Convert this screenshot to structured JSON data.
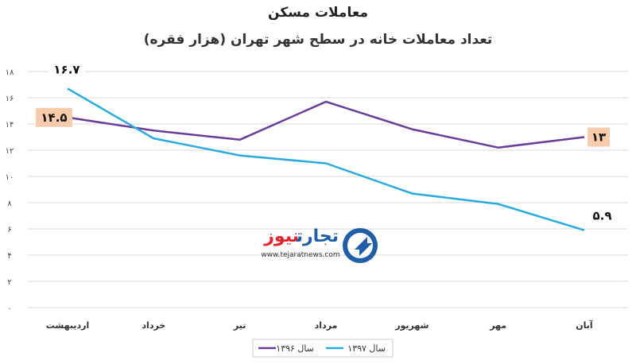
{
  "chart_data": {
    "type": "line",
    "title": "معاملات مسکن",
    "subtitle": "تعداد معاملات خانه در سطح شهر تهران (هزار فقره)",
    "categories": [
      "اردیبهشت",
      "خرداد",
      "تیر",
      "مرداد",
      "شهریور",
      "مهر",
      "آبان"
    ],
    "ylim": [
      0,
      18
    ],
    "yticks": [
      "۰",
      "۲",
      "۴",
      "۶",
      "۸",
      "۱۰",
      "۱۲",
      "۱۴",
      "۱۶",
      "۱۸"
    ],
    "grid": true,
    "legend_position": "bottom",
    "series": [
      {
        "name": "سال ۱۳۹۶",
        "color": "#6a3d9a",
        "values": [
          14.5,
          13.5,
          12.8,
          15.7,
          13.6,
          12.2,
          13.0
        ],
        "labels": [
          {
            "index": 0,
            "text": "۱۴.۵"
          },
          {
            "index": 6,
            "text": "۱۳"
          }
        ]
      },
      {
        "name": "سال ۱۳۹۷",
        "color": "#29abe2",
        "values": [
          16.7,
          12.9,
          11.6,
          11.0,
          8.7,
          7.9,
          5.9
        ],
        "labels": [
          {
            "index": 0,
            "text": "۱۶.۷"
          },
          {
            "index": 6,
            "text": "۵.۹"
          }
        ]
      }
    ]
  },
  "watermark": {
    "name": "تجارت نیوز",
    "url": "www.tejaratnews.com",
    "icon": "tejaratnews-logo-icon"
  },
  "colors": {
    "label_box_1396": "#f8cbad",
    "label_box_1397": "#ffffff",
    "grid": "#d9d9d9",
    "watermark_blue": "#1f5ea8",
    "watermark_red": "#e0242b"
  }
}
